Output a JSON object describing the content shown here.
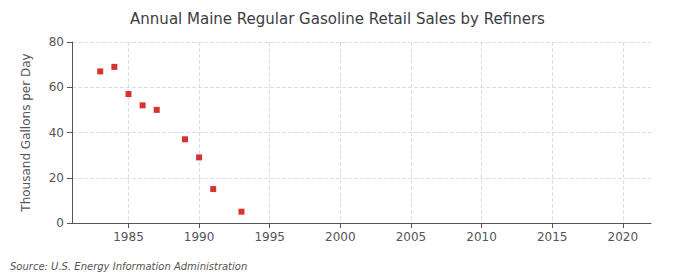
{
  "chart_data": {
    "type": "scatter",
    "title": "Annual Maine Regular Gasoline Retail Sales by Refiners",
    "ylabel": "Thousand Gallons per Day",
    "annotations": [
      "Source: U.S. Energy Information Administration"
    ],
    "x": [
      1983,
      1984,
      1985,
      1986,
      1987,
      1989,
      1990,
      1991,
      1993
    ],
    "values": [
      67,
      69,
      57,
      52,
      50,
      37,
      29,
      15,
      5
    ],
    "color": "#cc0000",
    "marker": "square",
    "xlim": [
      1981,
      2022
    ],
    "ylim": [
      0,
      80
    ],
    "xticks": [
      1985,
      1990,
      1995,
      2000,
      2005,
      2010,
      2015,
      2020
    ],
    "yticks": [
      0,
      20,
      40,
      60,
      80
    ],
    "grid": true
  }
}
